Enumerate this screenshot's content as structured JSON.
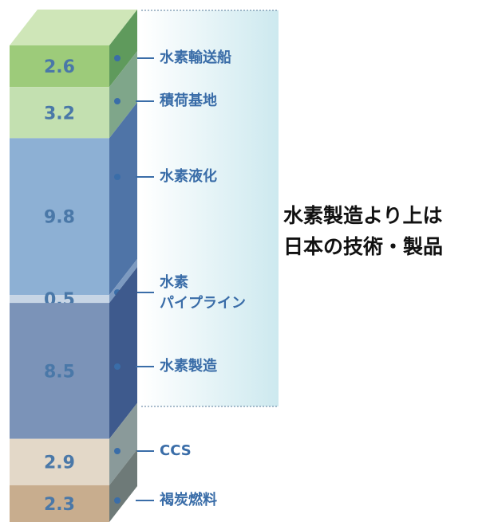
{
  "chart_data": {
    "type": "stacked-column-3d",
    "series": [
      {
        "name": "水素輸送船",
        "values": [
          2.6
        ],
        "color": "#9dcb7a",
        "side_color": "#5f9a5c"
      },
      {
        "name": "積荷基地",
        "values": [
          3.2
        ],
        "color": "#c3e0b0",
        "side_color": "#7fa68a"
      },
      {
        "name": "水素液化",
        "values": [
          9.8
        ],
        "color": "#8db0d4",
        "side_color": "#4f74a7"
      },
      {
        "name": "水素\nパイプライン",
        "values": [
          0.5
        ],
        "color": "#c7d5e5",
        "side_color": "#7d9ac0"
      },
      {
        "name": "水素製造",
        "values": [
          8.5
        ],
        "color": "#7b93b8",
        "side_color": "#3e5a8d"
      },
      {
        "name": "CCS",
        "values": [
          2.9
        ],
        "color": "#e3d8c8",
        "side_color": "#8a9a9a"
      },
      {
        "name": "褐炭燃料",
        "values": [
          2.3
        ],
        "color": "#c8ad8e",
        "side_color": "#6e7a78"
      }
    ],
    "annotation": [
      "水素製造より上は",
      "日本の技術・製品"
    ]
  }
}
